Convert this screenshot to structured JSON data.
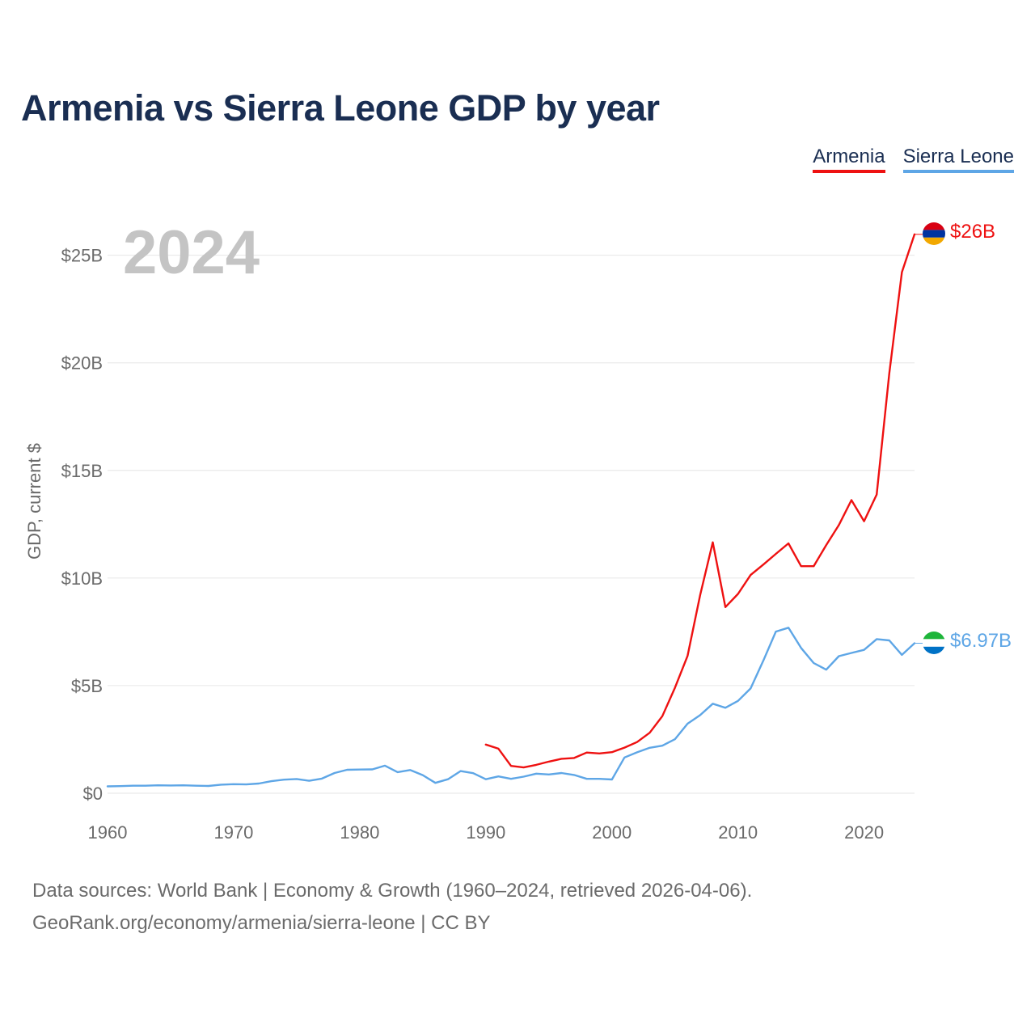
{
  "title": "Armenia vs Sierra Leone GDP by year",
  "year_watermark": "2024",
  "legend": [
    {
      "name": "Armenia",
      "color": "#ee1111"
    },
    {
      "name": "Sierra Leone",
      "color": "#5ea6e6"
    }
  ],
  "footer": {
    "line1": "Data sources: World Bank | Economy & Growth (1960–2024, retrieved 2026-04-06).",
    "line2": "GeoRank.org/economy/armenia/sierra-leone | CC BY"
  },
  "chart_data": {
    "type": "line",
    "title": "Armenia vs Sierra Leone GDP by year",
    "xlabel": "",
    "ylabel": "GDP, current $",
    "xlim": [
      1960,
      2024
    ],
    "ylim": [
      0,
      26
    ],
    "x_ticks": [
      1960,
      1970,
      1980,
      1990,
      2000,
      2010,
      2020
    ],
    "x_tick_labels": [
      "1960",
      "1970",
      "1980",
      "1990",
      "2000",
      "2010",
      "2020"
    ],
    "y_ticks": [
      0,
      5,
      10,
      15,
      20,
      25
    ],
    "y_tick_labels": [
      "$0",
      "$5B",
      "$10B",
      "$15B",
      "$20B",
      "$25B"
    ],
    "grid": true,
    "value_unit": "billion US$",
    "series": [
      {
        "name": "Armenia",
        "color": "#ee1111",
        "end_label": "$26B",
        "x": [
          1990,
          1991,
          1992,
          1993,
          1994,
          1995,
          1996,
          1997,
          1998,
          1999,
          2000,
          2001,
          2002,
          2003,
          2004,
          2005,
          2006,
          2007,
          2008,
          2009,
          2010,
          2011,
          2012,
          2013,
          2014,
          2015,
          2016,
          2017,
          2018,
          2019,
          2020,
          2021,
          2022,
          2023,
          2024
        ],
        "values": [
          2.26,
          2.07,
          1.27,
          1.2,
          1.32,
          1.47,
          1.6,
          1.64,
          1.89,
          1.85,
          1.91,
          2.12,
          2.38,
          2.81,
          3.58,
          4.9,
          6.38,
          9.21,
          11.66,
          8.65,
          9.26,
          10.14,
          10.62,
          11.12,
          11.61,
          10.55,
          10.55,
          11.53,
          12.46,
          13.62,
          12.64,
          13.88,
          19.51,
          24.21,
          25.97
        ]
      },
      {
        "name": "Sierra Leone",
        "color": "#5ea6e6",
        "end_label": "$6.97B",
        "x": [
          1960,
          1961,
          1962,
          1963,
          1964,
          1965,
          1966,
          1967,
          1968,
          1969,
          1970,
          1971,
          1972,
          1973,
          1974,
          1975,
          1976,
          1977,
          1978,
          1979,
          1980,
          1981,
          1982,
          1983,
          1984,
          1985,
          1986,
          1987,
          1988,
          1989,
          1990,
          1991,
          1992,
          1993,
          1994,
          1995,
          1996,
          1997,
          1998,
          1999,
          2000,
          2001,
          2002,
          2003,
          2004,
          2005,
          2006,
          2007,
          2008,
          2009,
          2010,
          2011,
          2012,
          2013,
          2014,
          2015,
          2016,
          2017,
          2018,
          2019,
          2020,
          2021,
          2022,
          2023,
          2024
        ],
        "values": [
          0.32,
          0.33,
          0.35,
          0.35,
          0.37,
          0.36,
          0.37,
          0.35,
          0.34,
          0.4,
          0.42,
          0.41,
          0.45,
          0.56,
          0.63,
          0.66,
          0.58,
          0.68,
          0.94,
          1.09,
          1.1,
          1.11,
          1.28,
          0.98,
          1.08,
          0.84,
          0.48,
          0.65,
          1.03,
          0.93,
          0.65,
          0.78,
          0.67,
          0.77,
          0.91,
          0.87,
          0.94,
          0.85,
          0.67,
          0.67,
          0.64,
          1.66,
          1.9,
          2.11,
          2.21,
          2.51,
          3.23,
          3.63,
          4.16,
          3.97,
          4.29,
          4.87,
          6.15,
          7.51,
          7.69,
          6.75,
          6.05,
          5.74,
          6.37,
          6.52,
          6.66,
          7.16,
          7.1,
          6.43,
          6.97
        ]
      }
    ]
  }
}
